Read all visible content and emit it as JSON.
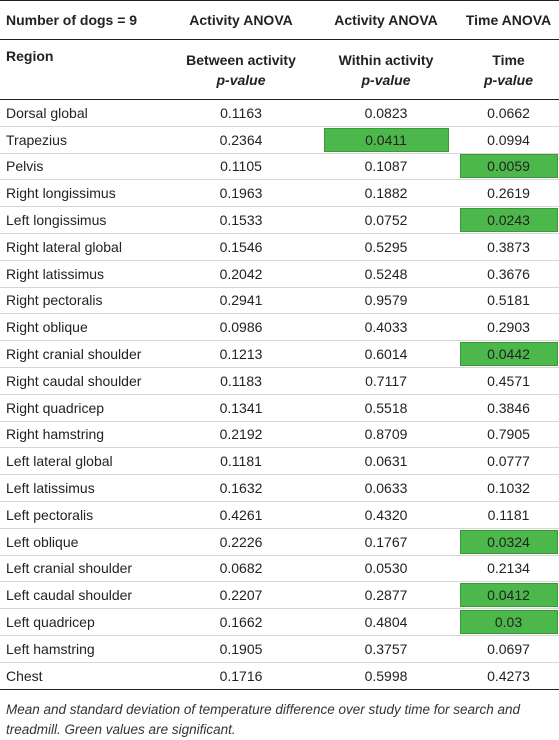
{
  "table": {
    "header_row1": [
      "Number of dogs = 9",
      "Activity ANOVA",
      "Activity ANOVA",
      "Time ANOVA"
    ],
    "header_row2": {
      "region": "Region",
      "col2_line1": "Between activity",
      "col3_line1": "Within activity",
      "col4_line1": "Time",
      "pvalue": "p-value"
    },
    "rows": [
      {
        "region": "Dorsal global",
        "between": "0.1163",
        "within": "0.0823",
        "time": "0.0662",
        "within_sig": false,
        "time_sig": false
      },
      {
        "region": "Trapezius",
        "between": "0.2364",
        "within": "0.0411",
        "time": "0.0994",
        "within_sig": true,
        "time_sig": false
      },
      {
        "region": "Pelvis",
        "between": "0.1105",
        "within": "0.1087",
        "time": "0.0059",
        "within_sig": false,
        "time_sig": true
      },
      {
        "region": "Right longissimus",
        "between": "0.1963",
        "within": "0.1882",
        "time": "0.2619",
        "within_sig": false,
        "time_sig": false
      },
      {
        "region": "Left longissimus",
        "between": "0.1533",
        "within": "0.0752",
        "time": "0.0243",
        "within_sig": false,
        "time_sig": true
      },
      {
        "region": "Right lateral global",
        "between": "0.1546",
        "within": "0.5295",
        "time": "0.3873",
        "within_sig": false,
        "time_sig": false
      },
      {
        "region": "Right latissimus",
        "between": "0.2042",
        "within": "0.5248",
        "time": "0.3676",
        "within_sig": false,
        "time_sig": false
      },
      {
        "region": "Right pectoralis",
        "between": "0.2941",
        "within": "0.9579",
        "time": "0.5181",
        "within_sig": false,
        "time_sig": false
      },
      {
        "region": "Right oblique",
        "between": "0.0986",
        "within": "0.4033",
        "time": "0.2903",
        "within_sig": false,
        "time_sig": false
      },
      {
        "region": "Right cranial shoulder",
        "between": "0.1213",
        "within": "0.6014",
        "time": "0.0442",
        "within_sig": false,
        "time_sig": true
      },
      {
        "region": "Right caudal shoulder",
        "between": "0.1183",
        "within": "0.7117",
        "time": "0.4571",
        "within_sig": false,
        "time_sig": false
      },
      {
        "region": "Right quadricep",
        "between": "0.1341",
        "within": "0.5518",
        "time": "0.3846",
        "within_sig": false,
        "time_sig": false
      },
      {
        "region": "Right hamstring",
        "between": "0.2192",
        "within": "0.8709",
        "time": "0.7905",
        "within_sig": false,
        "time_sig": false
      },
      {
        "region": "Left lateral global",
        "between": "0.1181",
        "within": "0.0631",
        "time": "0.0777",
        "within_sig": false,
        "time_sig": false
      },
      {
        "region": "Left latissimus",
        "between": "0.1632",
        "within": "0.0633",
        "time": "0.1032",
        "within_sig": false,
        "time_sig": false
      },
      {
        "region": "Left pectoralis",
        "between": "0.4261",
        "within": "0.4320",
        "time": "0.1181",
        "within_sig": false,
        "time_sig": false
      },
      {
        "region": "Left oblique",
        "between": "0.2226",
        "within": "0.1767",
        "time": "0.0324",
        "within_sig": false,
        "time_sig": true
      },
      {
        "region": "Left cranial shoulder",
        "between": "0.0682",
        "within": "0.0530",
        "time": "0.2134",
        "within_sig": false,
        "time_sig": false
      },
      {
        "region": "Left caudal shoulder",
        "between": "0.2207",
        "within": "0.2877",
        "time": "0.0412",
        "within_sig": false,
        "time_sig": true
      },
      {
        "region": "Left quadricep",
        "between": "0.1662",
        "within": "0.4804",
        "time": "0.03",
        "within_sig": false,
        "time_sig": true
      },
      {
        "region": "Left hamstring",
        "between": "0.1905",
        "within": "0.3757",
        "time": "0.0697",
        "within_sig": false,
        "time_sig": false
      },
      {
        "region": "Chest",
        "between": "0.1716",
        "within": "0.5998",
        "time": "0.4273",
        "within_sig": false,
        "time_sig": false
      }
    ]
  },
  "caption": "Mean and standard deviation of temperature difference over study time for search and treadmill. Green values are significant.",
  "colors": {
    "significant": "#4cb84c"
  }
}
